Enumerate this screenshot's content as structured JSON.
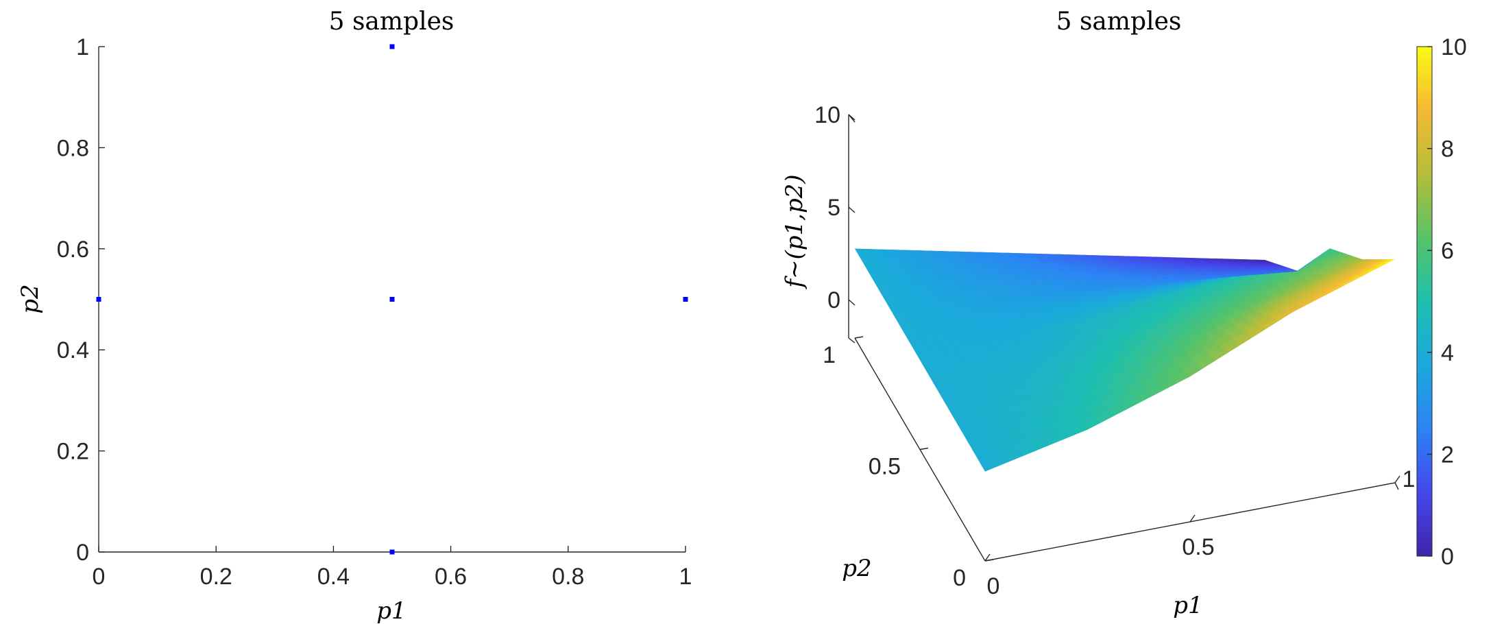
{
  "chart_data": [
    {
      "type": "scatter",
      "title": "5 samples",
      "xlabel": "p1",
      "ylabel": "p2",
      "xlim": [
        0,
        1
      ],
      "ylim": [
        0,
        1
      ],
      "xticks": [
        "0",
        "0.2",
        "0.4",
        "0.6",
        "0.8",
        "1"
      ],
      "yticks": [
        "0",
        "0.2",
        "0.4",
        "0.6",
        "0.8",
        "1"
      ],
      "grid": false,
      "marker_color": "#0000ff",
      "points": [
        {
          "x": 0.5,
          "y": 1
        },
        {
          "x": 0,
          "y": 0.5
        },
        {
          "x": 0.5,
          "y": 0.5
        },
        {
          "x": 1,
          "y": 0.5
        },
        {
          "x": 0.5,
          "y": 0
        }
      ]
    },
    {
      "type": "surface",
      "title": "5 samples",
      "xlabel": "p1",
      "ylabel": "p2",
      "zlabel": "f~(p1,p2)",
      "xlim": [
        0,
        1
      ],
      "ylim": [
        0,
        1
      ],
      "zlim": [
        0,
        10
      ],
      "xticks": [
        "0",
        "0.5",
        "1"
      ],
      "yticks": [
        "0",
        "0.5",
        "1"
      ],
      "zticks": [
        "0",
        "5",
        "10"
      ],
      "colormap": "parula",
      "colorbar": {
        "limits": [
          0,
          10
        ],
        "ticks": [
          "0",
          "2",
          "4",
          "6",
          "8",
          "10"
        ]
      },
      "grid": false,
      "surface_values": {
        "p1": [
          0,
          0.25,
          0.5,
          0.75,
          1
        ],
        "p2": [
          0,
          0.25,
          0.5,
          0.75,
          1
        ],
        "z": [
          [
            4,
            5,
            6.5,
            8.5,
            10
          ],
          [
            4,
            4.5,
            5.5,
            6.5,
            7.5
          ],
          [
            4,
            4,
            4.5,
            5,
            5.5
          ],
          [
            4,
            3.5,
            3,
            2.5,
            2
          ],
          [
            4,
            3,
            2,
            1,
            0
          ]
        ]
      }
    }
  ]
}
